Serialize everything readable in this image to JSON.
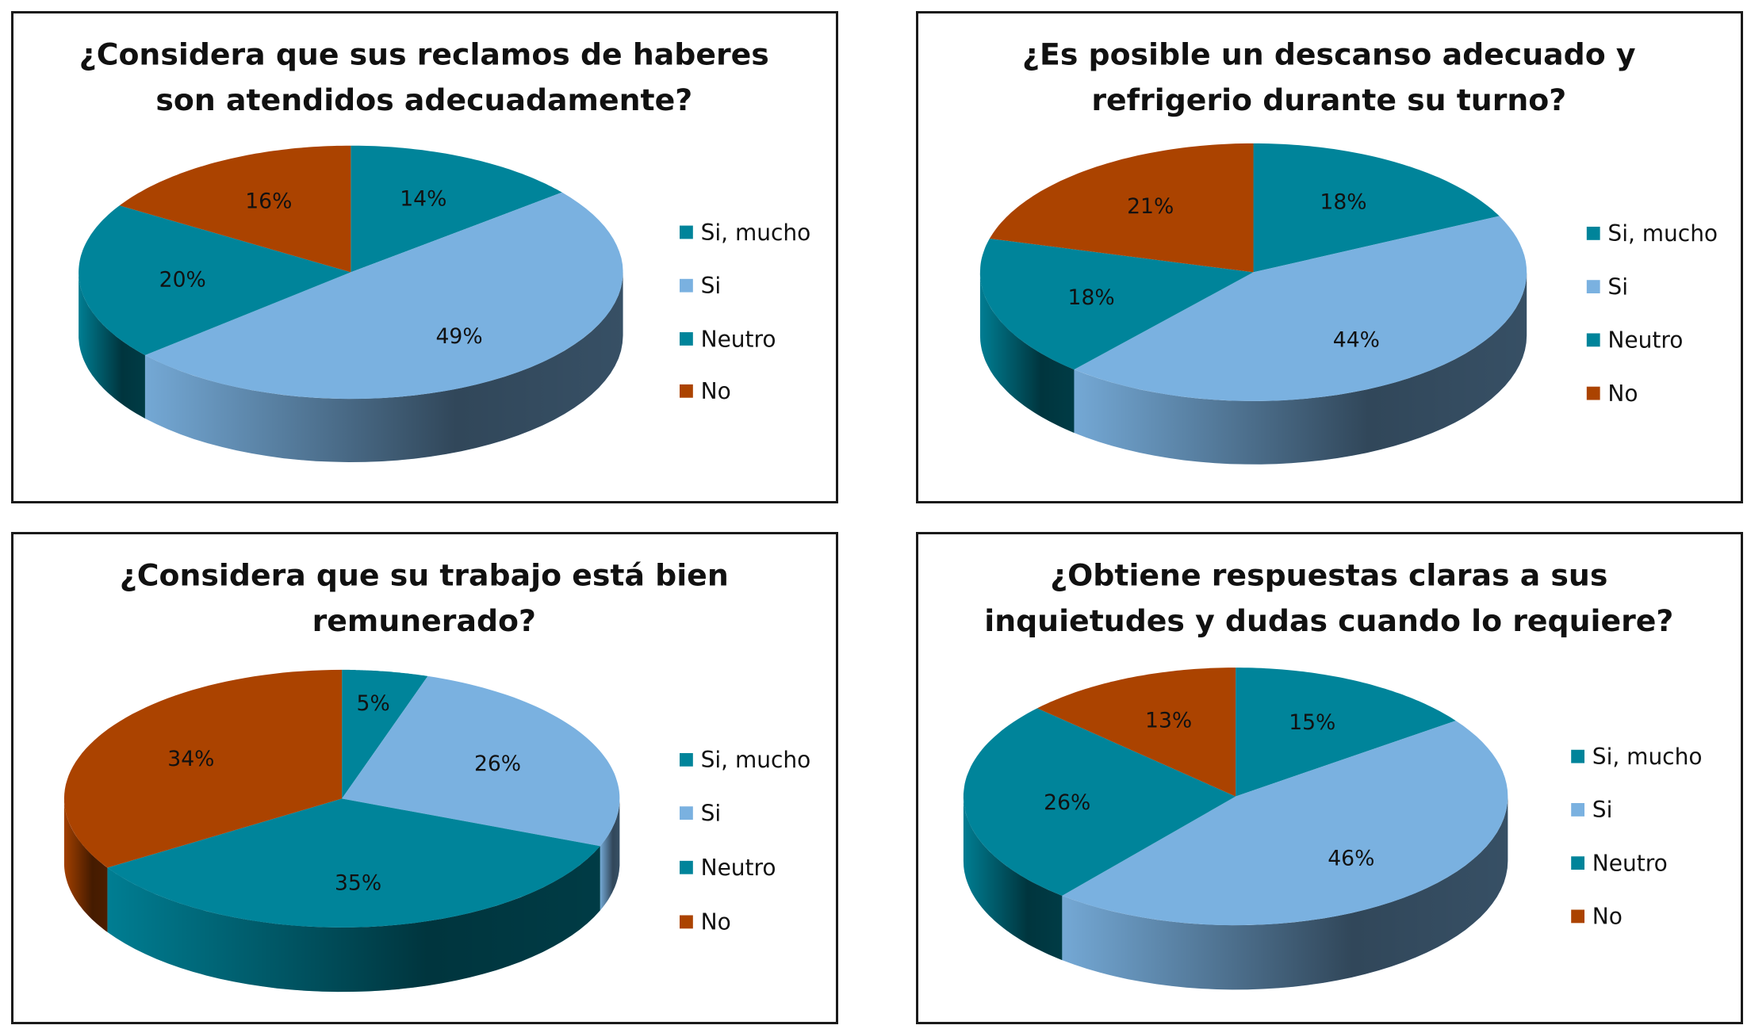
{
  "colors": {
    "si_mucho": "#00849a",
    "si": "#7ab1e0",
    "neutro": "#00849a",
    "no": "#ab4300"
  },
  "legend": [
    "Si, mucho",
    "Si",
    "Neutro",
    "No"
  ],
  "chart_data": [
    {
      "type": "pie",
      "title": [
        "¿Considera que sus reclamos de haberes",
        "son atendidos adecuadamente?"
      ],
      "categories": [
        "Si, mucho",
        "Si",
        "Neutro",
        "No"
      ],
      "values": [
        14,
        49,
        20,
        16
      ],
      "legend": "right"
    },
    {
      "type": "pie",
      "title": [
        "¿Es posible un descanso adecuado y",
        "refrigerio durante su turno?"
      ],
      "categories": [
        "Si, mucho",
        "Si",
        "Neutro",
        "No"
      ],
      "values": [
        18,
        44,
        18,
        21
      ],
      "legend": "right"
    },
    {
      "type": "pie",
      "title": [
        "¿Considera que su trabajo está bien",
        "remunerado?"
      ],
      "categories": [
        "Si, mucho",
        "Si",
        "Neutro",
        "No"
      ],
      "values": [
        5,
        26,
        35,
        34
      ],
      "legend": "right"
    },
    {
      "type": "pie",
      "title": [
        "¿Obtiene respuestas claras a sus",
        "inquietudes y dudas cuando lo requiere?"
      ],
      "categories": [
        "Si, mucho",
        "Si",
        "Neutro",
        "No"
      ],
      "values": [
        15,
        46,
        26,
        13
      ],
      "legend": "right"
    }
  ]
}
